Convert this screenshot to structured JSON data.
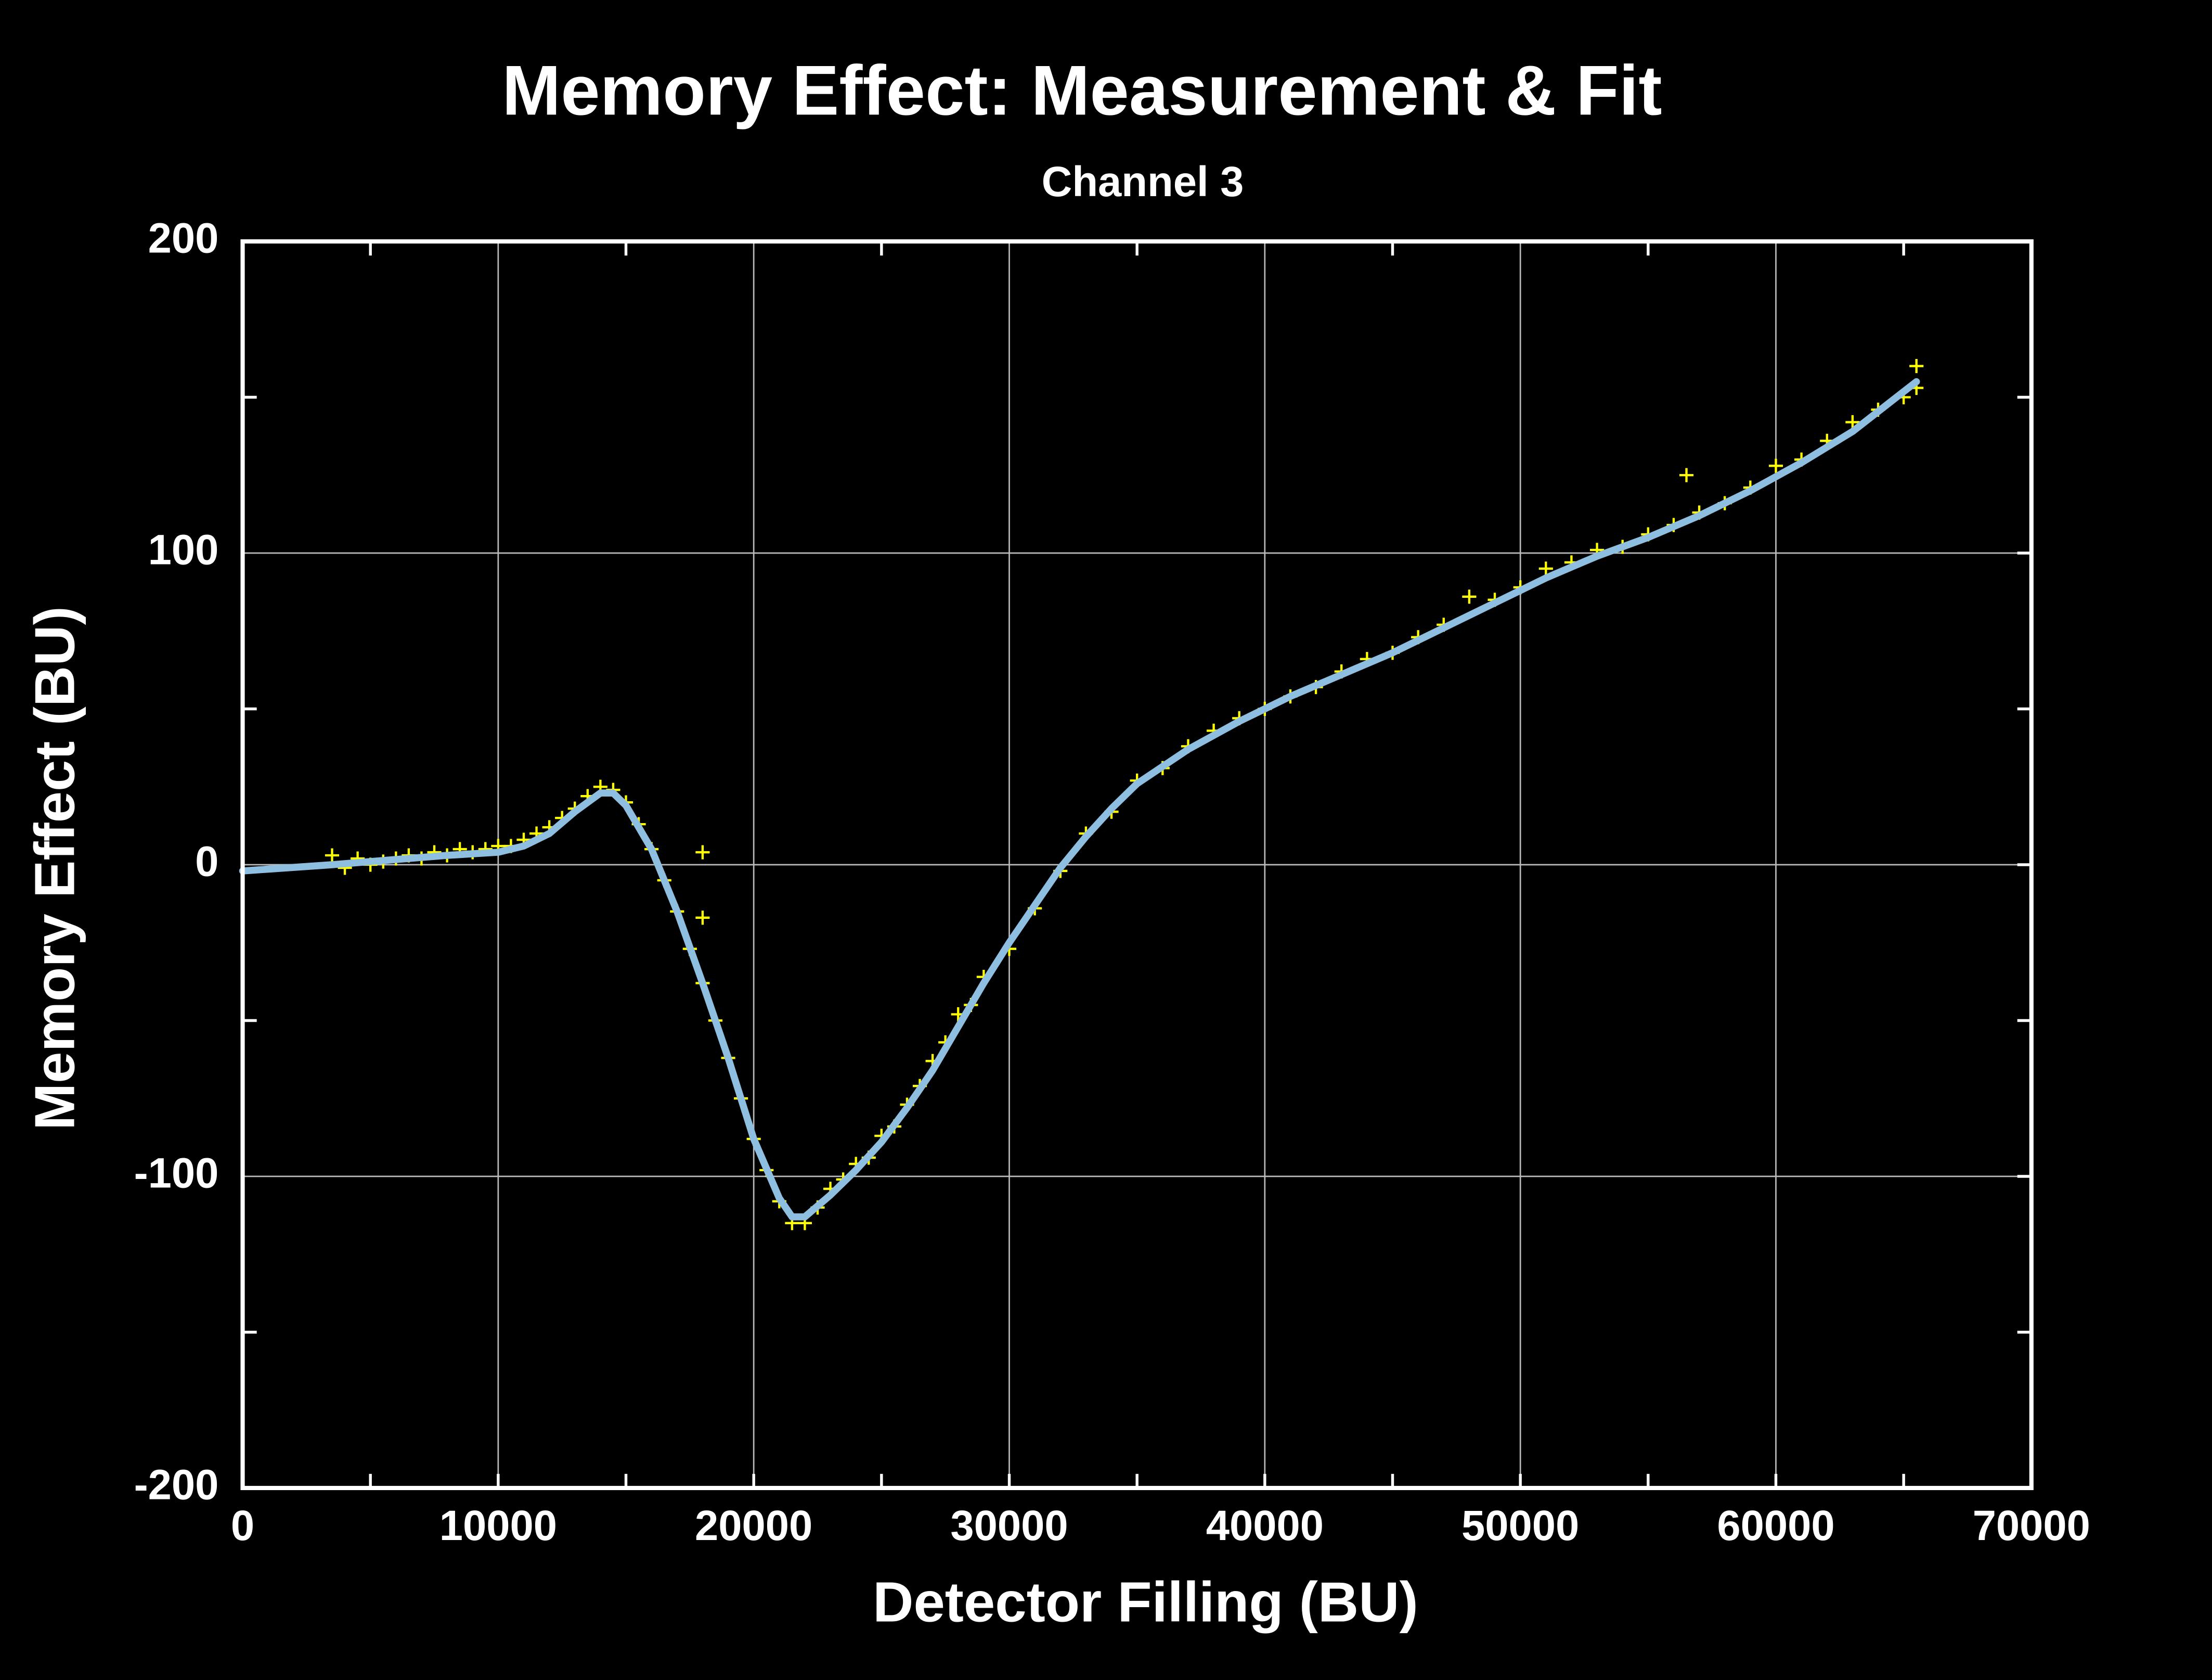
{
  "chart_data": {
    "type": "scatter",
    "title": "Memory Effect: Measurement & Fit",
    "subtitle": "Channel 3",
    "x_label": "Detector Filling (BU)",
    "y_label": "Memory Effect (BU)",
    "xlim": [
      0,
      70000
    ],
    "ylim": [
      -200,
      200
    ],
    "xticks": [
      0,
      10000,
      20000,
      30000,
      40000,
      50000,
      60000,
      70000
    ],
    "yticks": [
      -200,
      -100,
      0,
      100,
      200
    ],
    "xticks_minor": [
      5000,
      15000,
      25000,
      35000,
      45000,
      55000,
      65000
    ],
    "yticks_minor": [
      -150,
      -50,
      50,
      150
    ],
    "grid": true,
    "series": [
      {
        "style": "marker",
        "color": "#ffff00",
        "x": [
          3500,
          4000,
          4500,
          5000,
          5500,
          6000,
          6500,
          7000,
          7500,
          8000,
          8500,
          9000,
          9500,
          10000,
          10500,
          11000,
          11500,
          12000,
          12500,
          13000,
          13500,
          14000,
          14500,
          15000,
          15500,
          16000,
          16500,
          17000,
          17500,
          18000,
          18000,
          18000,
          18500,
          19000,
          19500,
          20000,
          20500,
          21000,
          21500,
          22000,
          22500,
          23000,
          23500,
          24000,
          24500,
          25000,
          25500,
          26000,
          26500,
          27000,
          27500,
          28000,
          28500,
          29000,
          30000,
          31000,
          32000,
          33000,
          34000,
          35000,
          36000,
          37000,
          38000,
          39000,
          40000,
          41000,
          42000,
          43000,
          44000,
          45000,
          46000,
          47000,
          48000,
          49000,
          50000,
          51000,
          52000,
          53000,
          54000,
          55000,
          56000,
          56500,
          57000,
          58000,
          59000,
          60000,
          61000,
          62000,
          63000,
          64000,
          65000,
          65500,
          65500
        ],
        "y": [
          3,
          -1,
          2,
          0,
          1,
          2,
          3,
          2,
          4,
          3,
          5,
          4,
          5,
          6,
          6,
          8,
          10,
          12,
          15,
          18,
          22,
          25,
          24,
          20,
          13,
          5,
          -5,
          -15,
          -27,
          4,
          -17,
          -38,
          -50,
          -62,
          -75,
          -88,
          -98,
          -108,
          -115,
          -115,
          -110,
          -104,
          -101,
          -96,
          -94,
          -87,
          -84,
          -77,
          -71,
          -63,
          -57,
          -48,
          -45,
          -36,
          -27,
          -14,
          -2,
          10,
          17,
          27,
          31,
          38,
          43,
          47,
          50,
          54,
          57,
          62,
          66,
          68,
          73,
          77,
          86,
          85,
          89,
          95,
          97,
          101,
          102,
          106,
          109,
          125,
          113,
          116,
          121,
          128,
          130,
          136,
          142,
          146,
          150,
          160,
          153
        ]
      },
      {
        "style": "line",
        "color": "#8fbfe0",
        "x": [
          0,
          3500,
          8000,
          10000,
          11000,
          12000,
          13000,
          14000,
          14500,
          15000,
          16000,
          17000,
          18000,
          19000,
          20000,
          21000,
          21500,
          22000,
          23000,
          24000,
          25000,
          26000,
          27000,
          28000,
          29000,
          30000,
          31000,
          32000,
          33000,
          34000,
          35000,
          37000,
          39000,
          41000,
          43000,
          45000,
          47000,
          49000,
          51000,
          53000,
          55000,
          57000,
          59000,
          61000,
          63000,
          65500
        ],
        "y": [
          -2,
          0,
          3,
          4,
          6,
          10,
          17,
          23,
          23,
          19,
          5,
          -15,
          -38,
          -62,
          -88,
          -107,
          -113,
          -113,
          -106,
          -98,
          -89,
          -78,
          -66,
          -52,
          -38,
          -25,
          -13,
          -1,
          9,
          18,
          26,
          37,
          46,
          54,
          61,
          68,
          76,
          84,
          92,
          99,
          105,
          112,
          120,
          129,
          139,
          155
        ]
      }
    ]
  }
}
